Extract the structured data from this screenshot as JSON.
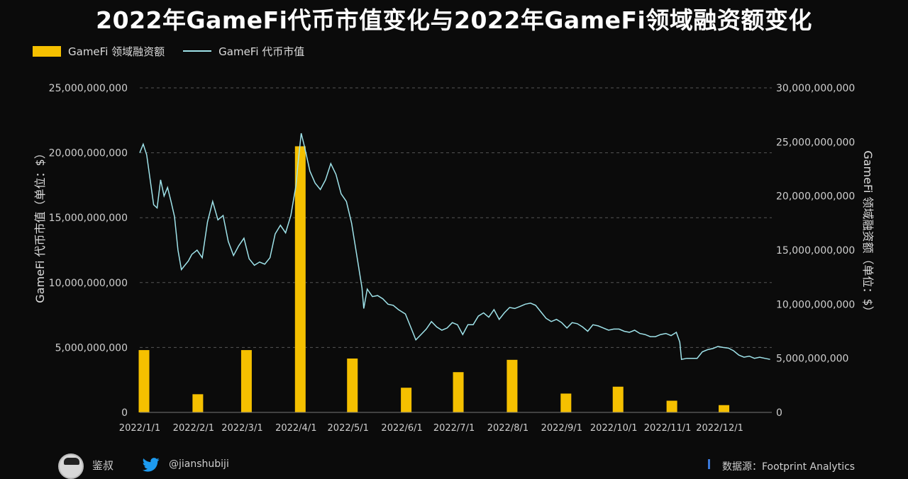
{
  "title": "2022年GameFi代币市值变化与2022年GameFi领域融资额变化",
  "legend": {
    "bar_label": "GameFi 领域融资额",
    "line_label": "GameFi 代币市值"
  },
  "footer": {
    "author": "鉴叔",
    "handle": "@jianshubiji",
    "source": "数据源：Footprint Analytics"
  },
  "colors": {
    "bar": "#f5c000",
    "line": "#9fe3ea",
    "background": "#0b0b0b",
    "grid": "#555555"
  },
  "icons": {
    "twitter": "twitter-bird-icon",
    "avatar": "author-avatar"
  },
  "chart_data": {
    "type": "bar+line",
    "x_tick_labels": [
      "2022/1/1",
      "2022/2/1",
      "2022/3/1",
      "2022/4/1",
      "2022/5/1",
      "2022/6/1",
      "2022/7/1",
      "2022/8/1",
      "2022/9/1",
      "2022/10/1",
      "2022/11/1",
      "2022/12/1"
    ],
    "y_left": {
      "label": "GameFi 代币市值（单位：$）",
      "lim": [
        0,
        25000000000
      ],
      "ticks": [
        0,
        5000000000,
        10000000000,
        15000000000,
        20000000000,
        25000000000
      ],
      "tick_labels": [
        "0",
        "5,000,000,000",
        "10,000,000,000",
        "15,000,000,000",
        "20,000,000,000",
        "25,000,000,000"
      ]
    },
    "y_right": {
      "label": "GameFi 领域融资额（单位：$）",
      "lim": [
        0,
        30000000000
      ],
      "ticks": [
        0,
        5000000000,
        10000000000,
        15000000000,
        20000000000,
        25000000000,
        30000000000
      ],
      "tick_labels": [
        "0",
        "5,000,000,000",
        "10,000,000,000",
        "15,000,000,000",
        "20,000,000,000",
        "25,000,000,000",
        "30,000,000,000"
      ]
    },
    "grid": "horizontal-dashed",
    "legend_position": "top-left",
    "bars": {
      "name": "GameFi 领域融资额",
      "axis": "left",
      "categories": [
        "2022/1/1",
        "2022/2/1",
        "2022/3/1",
        "2022/4/1",
        "2022/5/1",
        "2022/6/1",
        "2022/7/1",
        "2022/8/1",
        "2022/9/1",
        "2022/10/1",
        "2022/11/1",
        "2022/12/1"
      ],
      "values": [
        4800000000,
        1400000000,
        4800000000,
        20500000000,
        4150000000,
        1900000000,
        3100000000,
        4050000000,
        1450000000,
        1980000000,
        900000000,
        560000000
      ]
    },
    "line": {
      "name": "GameFi 代币市值",
      "axis": "right",
      "x": [
        "2022-01-01",
        "2022-01-03",
        "2022-01-05",
        "2022-01-07",
        "2022-01-09",
        "2022-01-11",
        "2022-01-13",
        "2022-01-15",
        "2022-01-17",
        "2022-01-19",
        "2022-01-21",
        "2022-01-23",
        "2022-01-25",
        "2022-01-27",
        "2022-01-29",
        "2022-01-31",
        "2022-02-03",
        "2022-02-06",
        "2022-02-09",
        "2022-02-12",
        "2022-02-15",
        "2022-02-18",
        "2022-02-21",
        "2022-02-24",
        "2022-02-27",
        "2022-03-02",
        "2022-03-05",
        "2022-03-08",
        "2022-03-11",
        "2022-03-14",
        "2022-03-17",
        "2022-03-20",
        "2022-03-23",
        "2022-03-26",
        "2022-03-29",
        "2022-04-01",
        "2022-04-02",
        "2022-04-04",
        "2022-04-06",
        "2022-04-09",
        "2022-04-12",
        "2022-04-15",
        "2022-04-18",
        "2022-04-21",
        "2022-04-24",
        "2022-04-27",
        "2022-04-30",
        "2022-05-03",
        "2022-05-06",
        "2022-05-09",
        "2022-05-10",
        "2022-05-12",
        "2022-05-15",
        "2022-05-18",
        "2022-05-21",
        "2022-05-24",
        "2022-05-27",
        "2022-05-30",
        "2022-06-03",
        "2022-06-06",
        "2022-06-09",
        "2022-06-12",
        "2022-06-15",
        "2022-06-18",
        "2022-06-21",
        "2022-06-24",
        "2022-06-27",
        "2022-06-30",
        "2022-07-03",
        "2022-07-06",
        "2022-07-09",
        "2022-07-12",
        "2022-07-15",
        "2022-07-18",
        "2022-07-21",
        "2022-07-24",
        "2022-07-27",
        "2022-07-30",
        "2022-08-02",
        "2022-08-05",
        "2022-08-08",
        "2022-08-11",
        "2022-08-14",
        "2022-08-17",
        "2022-08-20",
        "2022-08-23",
        "2022-08-26",
        "2022-08-29",
        "2022-09-01",
        "2022-09-04",
        "2022-09-07",
        "2022-09-10",
        "2022-09-13",
        "2022-09-16",
        "2022-09-19",
        "2022-09-22",
        "2022-09-25",
        "2022-09-28",
        "2022-10-01",
        "2022-10-04",
        "2022-10-07",
        "2022-10-10",
        "2022-10-13",
        "2022-10-16",
        "2022-10-19",
        "2022-10-22",
        "2022-10-25",
        "2022-10-28",
        "2022-10-31",
        "2022-11-03",
        "2022-11-06",
        "2022-11-08",
        "2022-11-09",
        "2022-11-12",
        "2022-11-15",
        "2022-11-18",
        "2022-11-21",
        "2022-11-24",
        "2022-11-27",
        "2022-11-30",
        "2022-12-03",
        "2022-12-06",
        "2022-12-09",
        "2022-12-12",
        "2022-12-15",
        "2022-12-18",
        "2022-12-21",
        "2022-12-24",
        "2022-12-27",
        "2022-12-30"
      ],
      "y": [
        24000000000,
        24800000000,
        23800000000,
        21500000000,
        19200000000,
        18900000000,
        21500000000,
        20000000000,
        20800000000,
        19500000000,
        18100000000,
        15000000000,
        13200000000,
        13600000000,
        14000000000,
        14600000000,
        15000000000,
        14300000000,
        17600000000,
        19500000000,
        17800000000,
        18200000000,
        15800000000,
        14500000000,
        15400000000,
        16100000000,
        14200000000,
        13600000000,
        13900000000,
        13700000000,
        14300000000,
        16500000000,
        17300000000,
        16600000000,
        18200000000,
        21000000000,
        22800000000,
        25800000000,
        24500000000,
        22300000000,
        21200000000,
        20600000000,
        21500000000,
        23000000000,
        22000000000,
        20200000000,
        19500000000,
        17500000000,
        14500000000,
        11500000000,
        9600000000,
        11400000000,
        10700000000,
        10800000000,
        10500000000,
        10000000000,
        9900000000,
        9500000000,
        9100000000,
        7900000000,
        6700000000,
        7200000000,
        7700000000,
        8400000000,
        7900000000,
        7600000000,
        7800000000,
        8300000000,
        8100000000,
        7200000000,
        8100000000,
        8100000000,
        8900000000,
        9200000000,
        8800000000,
        9500000000,
        8600000000,
        9200000000,
        9700000000,
        9600000000,
        9800000000,
        10000000000,
        10100000000,
        9900000000,
        9300000000,
        8700000000,
        8400000000,
        8600000000,
        8300000000,
        7800000000,
        8300000000,
        8200000000,
        7900000000,
        7500000000,
        8100000000,
        8000000000,
        7800000000,
        7600000000,
        7700000000,
        7700000000,
        7500000000,
        7400000000,
        7600000000,
        7300000000,
        7200000000,
        7000000000,
        7000000000,
        7200000000,
        7300000000,
        7100000000,
        7400000000,
        6500000000,
        4900000000,
        5000000000,
        5000000000,
        5000000000,
        5600000000,
        5800000000,
        5900000000,
        6100000000,
        6000000000,
        5950000000,
        5700000000,
        5300000000,
        5100000000,
        5200000000,
        5000000000,
        5100000000,
        5000000000,
        4900000000
      ]
    }
  }
}
